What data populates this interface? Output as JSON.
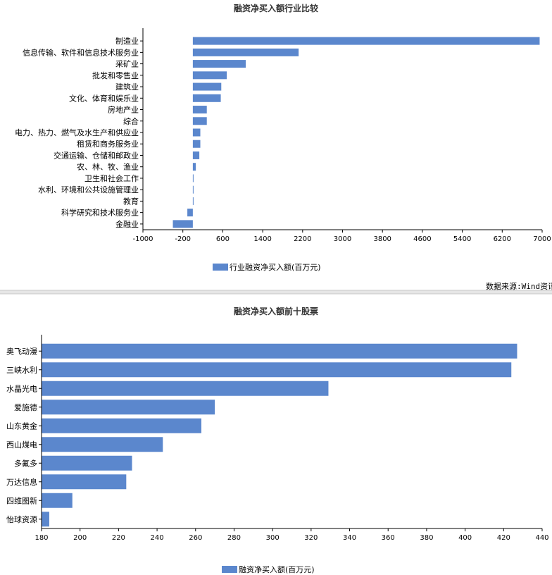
{
  "source_note": "数据来源:Wind资讯",
  "colors": {
    "bar": "#5b87cd",
    "axis": "#000000",
    "divider": "#c8c8c8"
  },
  "chart_data": [
    {
      "type": "bar",
      "orientation": "horizontal",
      "title": "融资净买入额行业比较",
      "categories": [
        "制造业",
        "信息传输、软件和信息技术服务业",
        "采矿业",
        "批发和零售业",
        "建筑业",
        "文化、体育和娱乐业",
        "房地产业",
        "综合",
        "电力、热力、燃气及水生产和供应业",
        "租赁和商务服务业",
        "交通运输、仓储和邮政业",
        "农、林、牧、渔业",
        "卫生和社会工作",
        "水利、环境和公共设施管理业",
        "教育",
        "科学研究和技术服务业",
        "金融业"
      ],
      "series": [
        {
          "name": "行业融资净买入额(百万元)",
          "values": [
            6950,
            2120,
            1060,
            680,
            570,
            560,
            280,
            280,
            150,
            150,
            130,
            60,
            5,
            3,
            2,
            -110,
            -400
          ]
        }
      ],
      "xlim": [
        -1000,
        7000
      ],
      "xticks": [
        -1000,
        -200,
        600,
        1400,
        2200,
        3000,
        3800,
        4600,
        5400,
        6200,
        7000
      ],
      "legend": "bottom"
    },
    {
      "type": "bar",
      "orientation": "horizontal",
      "title": "融资净买入额前十股票",
      "categories": [
        "奥飞动漫",
        "三峡水利",
        "水晶光电",
        "爱施德",
        "山东黄金",
        "西山煤电",
        "多氟多",
        "万达信息",
        "四维图新",
        "怡球资源"
      ],
      "series": [
        {
          "name": "融资净买入额(百万元)",
          "values": [
            427,
            424,
            329,
            270,
            263,
            243,
            227,
            224,
            196,
            184
          ]
        }
      ],
      "xlim": [
        180,
        440
      ],
      "xticks": [
        180,
        200,
        220,
        240,
        260,
        280,
        300,
        320,
        340,
        360,
        380,
        400,
        420,
        440
      ],
      "legend": "bottom"
    }
  ]
}
